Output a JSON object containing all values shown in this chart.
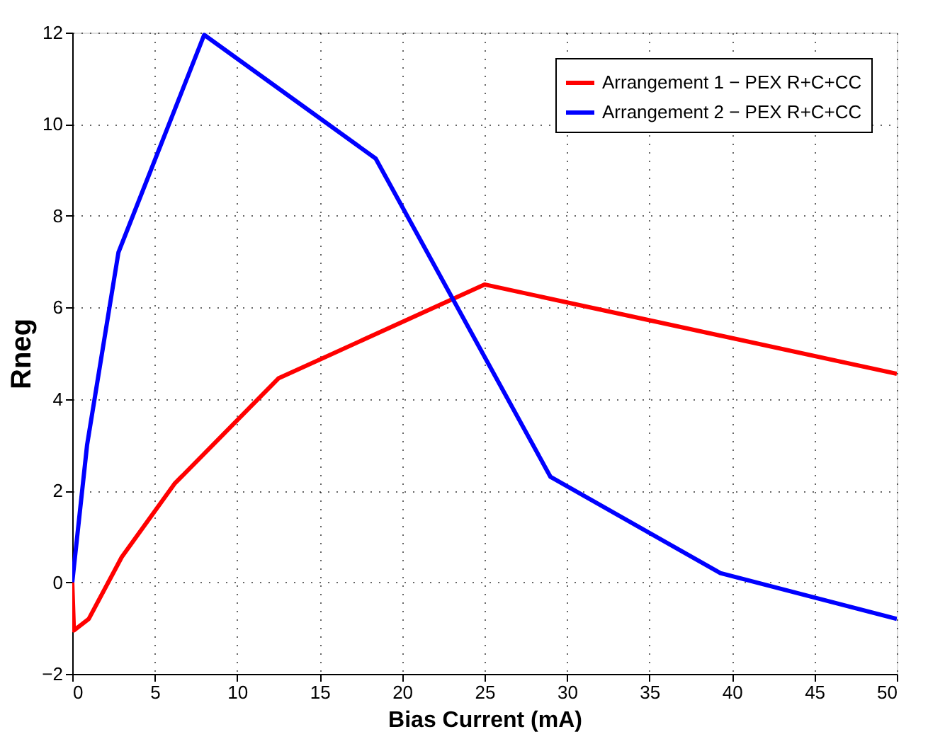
{
  "chart_data": {
    "type": "line",
    "xlabel": "Bias Current (mA)",
    "ylabel": "Rneg",
    "series": [
      {
        "name": "Arrangement 1 − PEX R+C+CC",
        "color": "#ff0000",
        "x": [
          0,
          0.1,
          1,
          3,
          6.2,
          12.5,
          25,
          50
        ],
        "values": [
          0,
          -1.05,
          -0.8,
          0.55,
          2.15,
          4.45,
          6.5,
          4.55
        ]
      },
      {
        "name": "Arrangement 2 − PEX R+C+CC",
        "color": "#0000ff",
        "x": [
          0,
          0.9,
          2.8,
          8,
          18.4,
          29,
          39.3,
          50
        ],
        "values": [
          0,
          3.0,
          7.2,
          11.95,
          9.25,
          2.3,
          0.2,
          -0.8
        ]
      }
    ],
    "xlim": [
      0,
      50
    ],
    "xticks": [
      0,
      5,
      10,
      15,
      20,
      25,
      30,
      35,
      40,
      45,
      50
    ],
    "ylim": [
      -2,
      12
    ],
    "yticks": [
      -2,
      0,
      2,
      4,
      6,
      8,
      10,
      12
    ],
    "grid": true,
    "legend": "top right",
    "line_style": "solid",
    "marker": "none"
  }
}
